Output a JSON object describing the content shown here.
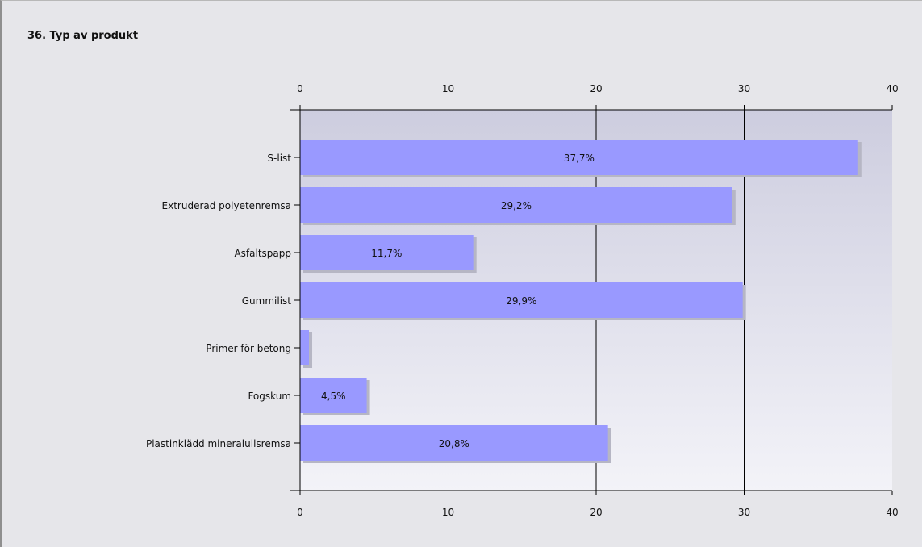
{
  "question": {
    "title": "36. Typ av produkt"
  },
  "colors": {
    "panel_background": "#e6e6ea",
    "bar_fill": "#9999ff",
    "bar_shadow": "#b6b6c4",
    "plot_gradient_top": "#cdcddf",
    "plot_gradient_bottom": "#f3f3f8",
    "axis": "#000000"
  },
  "chart_data": {
    "type": "bar",
    "orientation": "horizontal",
    "categories": [
      "S-list",
      "Extruderad polyetenremsa",
      "Asfaltspapp",
      "Gummilist",
      "Primer för betong",
      "Fogskum",
      "Plastinklädd mineralullsremsa"
    ],
    "values": [
      37.7,
      29.2,
      11.7,
      29.9,
      0.6,
      4.5,
      20.8
    ],
    "data_labels": [
      "37,7%",
      "29,2%",
      "11,7%",
      "29,9%",
      "",
      "4,5%",
      "20,8%"
    ],
    "xlim": [
      0,
      40
    ],
    "x_ticks": [
      "0",
      "10",
      "20",
      "30",
      "40"
    ],
    "title": "36. Typ av produkt",
    "xlabel": "",
    "ylabel": "",
    "grid": true,
    "tick_labels_top_and_bottom": true
  }
}
